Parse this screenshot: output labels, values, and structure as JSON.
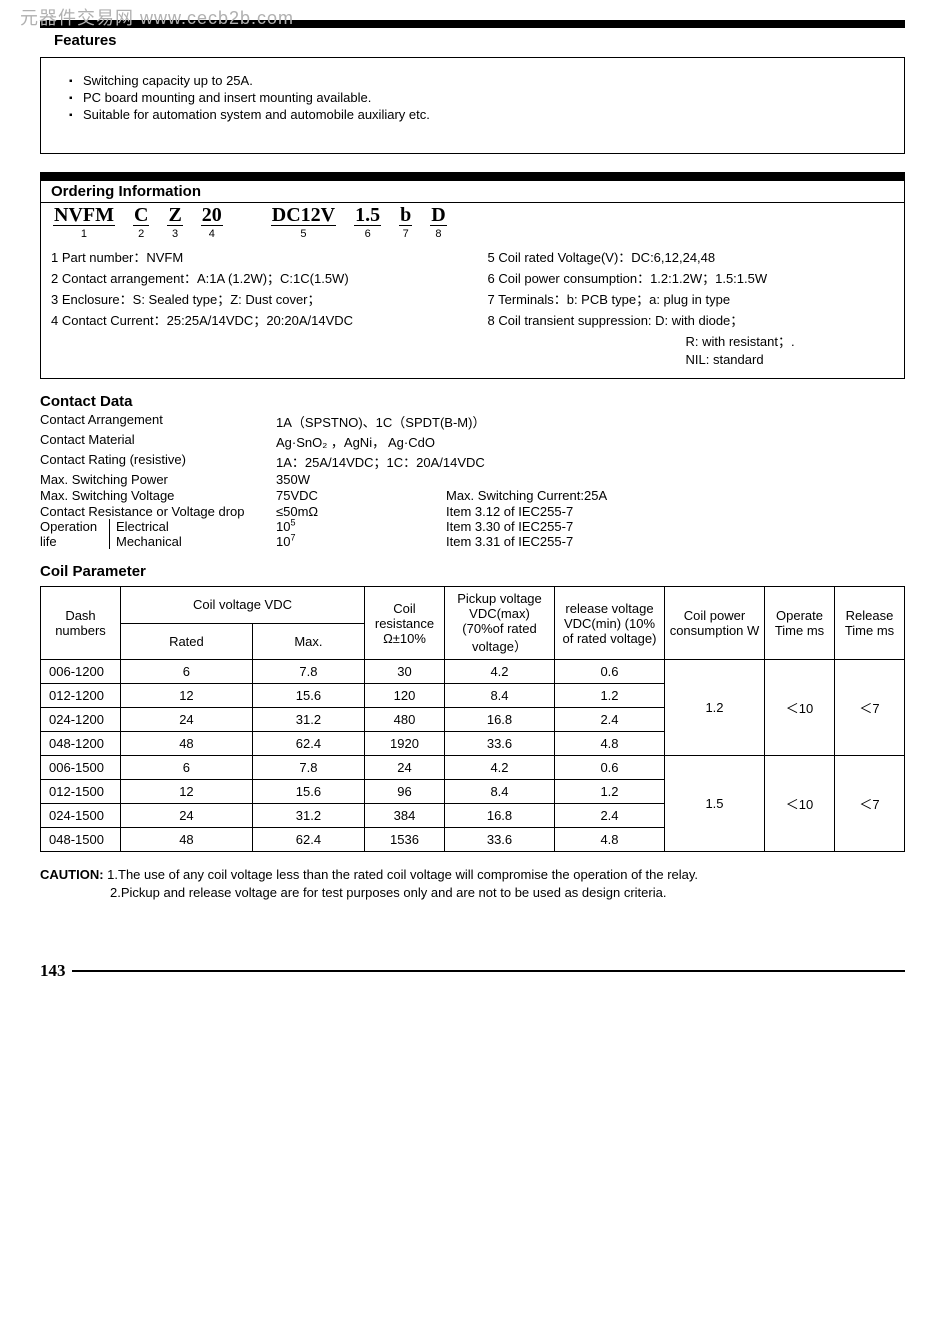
{
  "watermark": "元器件交易网 www.cecb2b.com",
  "features": {
    "title": "Features",
    "items": [
      "Switching capacity up to 25A.",
      "PC board mounting and insert mounting available.",
      "Suitable for automation system and automobile auxiliary etc."
    ]
  },
  "ordering": {
    "title": "Ordering Information",
    "code": [
      {
        "seg": "NVFM",
        "n": "1"
      },
      {
        "seg": "C",
        "n": "2"
      },
      {
        "seg": "Z",
        "n": "3"
      },
      {
        "seg": "20",
        "n": "4"
      },
      {
        "seg": "DC12V",
        "n": "5"
      },
      {
        "seg": "1.5",
        "n": "6"
      },
      {
        "seg": "b",
        "n": "7"
      },
      {
        "seg": "D",
        "n": "8"
      }
    ],
    "left": [
      "1 Part number：NVFM",
      "2 Contact arrangement：A:1A (1.2W)；C:1C(1.5W)",
      "3 Enclosure：S: Sealed type；Z: Dust cover；",
      "4 Contact Current：25:25A/14VDC；20:20A/14VDC"
    ],
    "right": [
      "5 Coil rated Voltage(V)：DC:6,12,24,48",
      "6 Coil power consumption：1.2:1.2W；1.5:1.5W",
      "7 Terminals：b: PCB type；a: plug in type",
      "8 Coil transient suppression: D: with diode；",
      "R: with resistant；.",
      "NIL: standard"
    ]
  },
  "contact": {
    "title": "Contact Data",
    "rows": [
      {
        "label": "Contact Arrangement",
        "val": "1A（SPSTNO)、1C（SPDT(B-M)）",
        "extra": ""
      },
      {
        "label": "Contact Material",
        "val": "Ag·SnO₂ ，AgNi， Ag·CdO",
        "extra": ""
      },
      {
        "label": "Contact Rating (resistive)",
        "val": "1A：25A/14VDC；1C：20A/14VDC",
        "extra": ""
      },
      {
        "label": "Max. Switching Power",
        "val": "350W",
        "extra": ""
      },
      {
        "label": "Max. Switching Voltage",
        "val": "75VDC",
        "extra": "Max. Switching Current:25A"
      },
      {
        "label": "Contact Resistance or Voltage drop",
        "val": "≤50mΩ",
        "extra": "Item 3.12 of IEC255-7"
      }
    ],
    "oplife": {
      "label": "Operation life",
      "r1": {
        "k": "Electrical",
        "v": "10⁵",
        "e": "Item 3.30 of IEC255-7"
      },
      "r2": {
        "k": "Mechanical",
        "v": "10⁷",
        "e": "Item 3.31 of IEC255-7"
      }
    }
  },
  "coil": {
    "title": "Coil Parameter",
    "headers": {
      "dash": "Dash numbers",
      "cv": "Coil voltage VDC",
      "rated": "Rated",
      "max": "Max.",
      "res": "Coil resistance Ω±10%",
      "pickup": "Pickup voltage VDC(max) (70%of rated voltage）",
      "release": "release voltage VDC(min) (10% of rated voltage)",
      "power": "Coil power consumption W",
      "ot": "Operate Time ms",
      "rt": "Release Time ms"
    },
    "groups": [
      {
        "power": "1.2",
        "ot": "＜10",
        "rt": "＜7",
        "rows": [
          {
            "dash": "006-1200",
            "rated": "6",
            "max": "7.8",
            "res": "30",
            "pu": "4.2",
            "rel": "0.6"
          },
          {
            "dash": "012-1200",
            "rated": "12",
            "max": "15.6",
            "res": "120",
            "pu": "8.4",
            "rel": "1.2"
          },
          {
            "dash": "024-1200",
            "rated": "24",
            "max": "31.2",
            "res": "480",
            "pu": "16.8",
            "rel": "2.4"
          },
          {
            "dash": "048-1200",
            "rated": "48",
            "max": "62.4",
            "res": "1920",
            "pu": "33.6",
            "rel": "4.8"
          }
        ]
      },
      {
        "power": "1.5",
        "ot": "＜10",
        "rt": "＜7",
        "rows": [
          {
            "dash": "006-1500",
            "rated": "6",
            "max": "7.8",
            "res": "24",
            "pu": "4.2",
            "rel": "0.6"
          },
          {
            "dash": "012-1500",
            "rated": "12",
            "max": "15.6",
            "res": "96",
            "pu": "8.4",
            "rel": "1.2"
          },
          {
            "dash": "024-1500",
            "rated": "24",
            "max": "31.2",
            "res": "384",
            "pu": "16.8",
            "rel": "2.4"
          },
          {
            "dash": "048-1500",
            "rated": "48",
            "max": "62.4",
            "res": "1536",
            "pu": "33.6",
            "rel": "4.8"
          }
        ]
      }
    ]
  },
  "caution": {
    "label": "CAUTION:",
    "l1": "1.The use of any coil voltage less than the rated coil voltage will compromise the operation of the relay.",
    "l2": "2.Pickup and release voltage are for test purposes only and are not to be used as design criteria."
  },
  "pagenum": "143"
}
